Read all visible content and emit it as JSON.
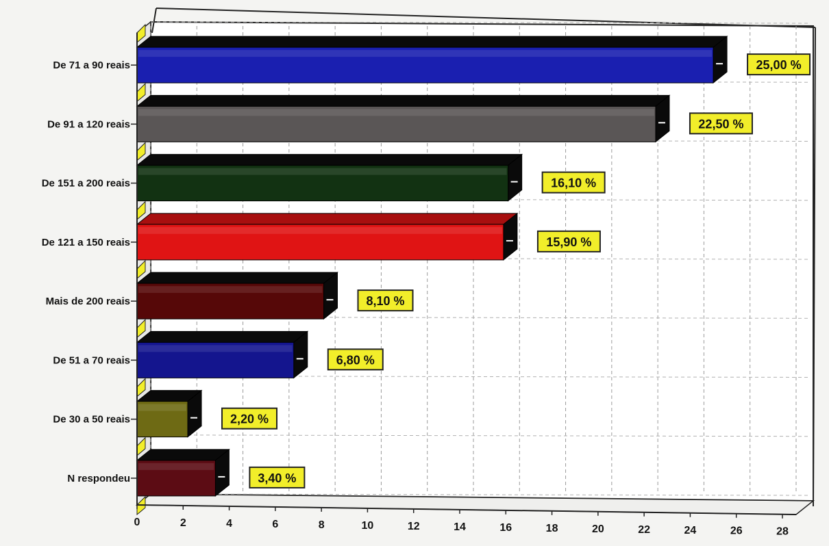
{
  "chart_data": {
    "type": "bar",
    "orientation": "horizontal",
    "categories": [
      "De 71 a 90 reais",
      "De 91 a 120 reais",
      "De 151 a 200 reais",
      "De 121 a 150 reais",
      "Mais de 200 reais",
      "De 51 a 70 reais",
      "De 30 a 50 reais",
      "N respondeu"
    ],
    "values": [
      25.0,
      22.5,
      16.1,
      15.9,
      8.1,
      6.8,
      2.2,
      3.4
    ],
    "data_labels": [
      "25,00 %",
      "22,50 %",
      "16,10 %",
      "15,90 %",
      "8,10 %",
      "6,80 %",
      "2,20 %",
      "3,40 %"
    ],
    "colors": [
      "#1a1fb0",
      "#5a5656",
      "#123212",
      "#e01414",
      "#560808",
      "#14158e",
      "#6e6a14",
      "#5c0c14"
    ],
    "xticks": [
      "0",
      "2",
      "4",
      "6",
      "8",
      "10",
      "12",
      "14",
      "16",
      "18",
      "20",
      "22",
      "24",
      "26",
      "28"
    ],
    "xlim": [
      0,
      28
    ],
    "grid": true,
    "legend": "none",
    "title": "",
    "xlabel": "",
    "ylabel": "",
    "label_background": "#f2ee2a"
  }
}
